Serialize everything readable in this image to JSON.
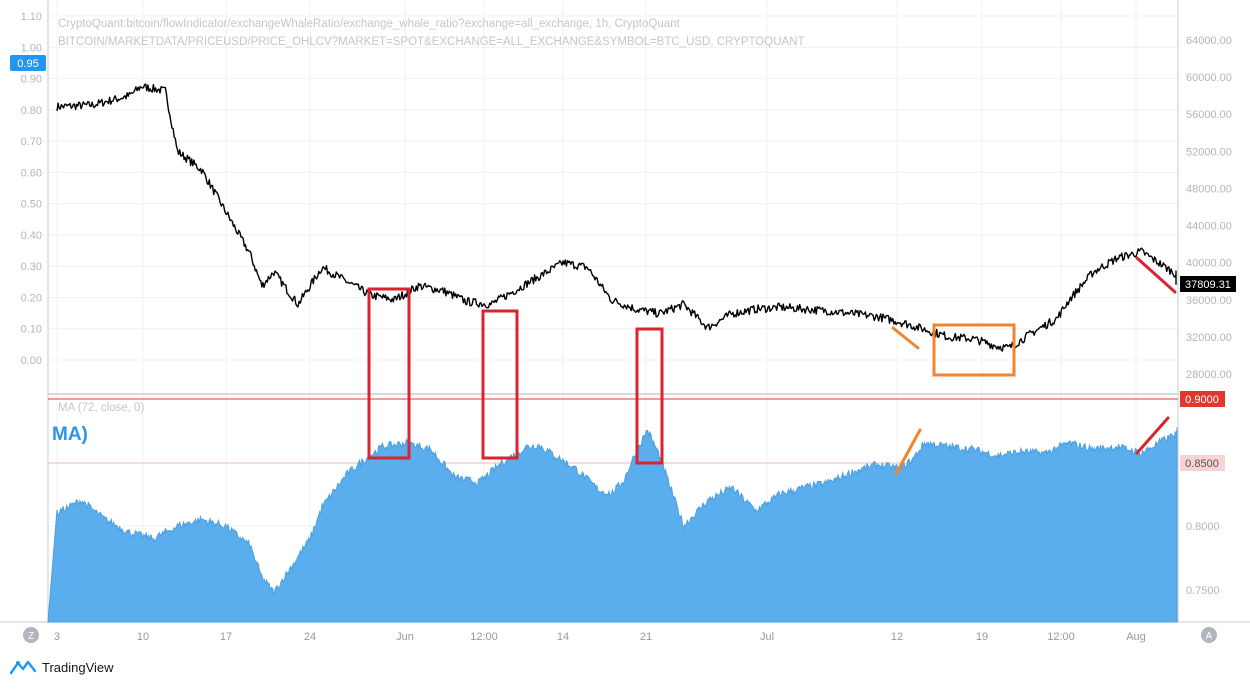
{
  "app": {
    "brand": "TradingView"
  },
  "header": {
    "line1": "CryptoQuant:bitcoin/flowIndicator/exchangeWhaleRatio/exchange_whale_ratio?exchange=all_exchange, 1h, CryptoQuant",
    "line2": "BITCOIN/MARKETDATA/PRICEUSD/PRICE_OHLCV?MARKET=SPOT&EXCHANGE=ALL_EXCHANGE&SYMBOL=BTC_USD, CRYPTOQUANT"
  },
  "upper_pane": {
    "left_axis_ticks": [
      "1.10",
      "1.00",
      "0.90",
      "0.80",
      "0.70",
      "0.60",
      "0.50",
      "0.40",
      "0.30",
      "0.20",
      "0.10",
      "0.00"
    ],
    "left_badge": "0.95",
    "right_axis_ticks": [
      "64000.00",
      "60000.00",
      "56000.00",
      "52000.00",
      "48000.00",
      "44000.00",
      "40000.00",
      "36000.00",
      "32000.00",
      "28000.00"
    ],
    "price_badge": "37809.31"
  },
  "lower_pane": {
    "indicator_label": "MA (72, close, 0)",
    "big_label": "MA)",
    "right_axis_ticks": [
      "0.8000",
      "0.7500"
    ],
    "badges": [
      "0.9000",
      "0.8500"
    ]
  },
  "x_axis": {
    "ticks": [
      "3",
      "10",
      "17",
      "24",
      "Jun",
      "12:00",
      "14",
      "21",
      "Jul",
      "12",
      "19",
      "12:00",
      "Aug"
    ],
    "left_button": "Z",
    "right_button": "A"
  },
  "colors": {
    "price_line": "#000000",
    "ma_fill": "#5aaeee",
    "ma_stroke": "#4a9fe0",
    "annotation_red": "#d9232f",
    "annotation_orange": "#f0852d",
    "badge_blue": "#2196f3",
    "badge_red": "#e0382f",
    "badge_pink": "#f7d3d5",
    "badge_black": "#000000"
  },
  "chart_data": [
    {
      "type": "line",
      "series": [
        {
          "name": "BTC_USD",
          "x": [
            "May 3",
            "May 6",
            "May 9",
            "May 10",
            "May 12",
            "May 13",
            "May 15",
            "May 17",
            "May 19",
            "May 20",
            "May 21",
            "May 23",
            "May 25",
            "May 27",
            "May 29",
            "May 31",
            "Jun 2",
            "Jun 4",
            "Jun 6",
            "Jun 8",
            "Jun 10",
            "Jun 12",
            "Jun 14",
            "Jun 16",
            "Jun 18",
            "Jun 20",
            "Jun 22",
            "Jun 24",
            "Jun 26",
            "Jun 28",
            "Jun 30",
            "Jul 2",
            "Jul 4",
            "Jul 6",
            "Jul 8",
            "Jul 10",
            "Jul 12",
            "Jul 14",
            "Jul 16",
            "Jul 18",
            "Jul 20",
            "Jul 21",
            "Jul 23",
            "Jul 25",
            "Jul 26",
            "Jul 28",
            "Jul 30",
            "Aug 1",
            "Aug 3",
            "Aug 5"
          ],
          "values": [
            56800,
            57000,
            58000,
            59000,
            58500,
            52000,
            50000,
            45500,
            41000,
            37500,
            39000,
            35500,
            39500,
            38000,
            36500,
            36000,
            37500,
            37000,
            35800,
            35500,
            37000,
            38500,
            40000,
            39500,
            36000,
            35000,
            34500,
            35500,
            33000,
            34500,
            35000,
            35200,
            35000,
            34800,
            34500,
            34200,
            33600,
            32800,
            32000,
            31800,
            31000,
            30800,
            32500,
            34000,
            36000,
            39000,
            40500,
            41200,
            39500,
            37800
          ]
        }
      ],
      "ylabel": "",
      "ylim": [
        27000,
        66000
      ]
    },
    {
      "type": "line",
      "series": [
        {
          "name": "exchange_whale_ratio",
          "x": [
            "May 3",
            "May 10",
            "May 17",
            "May 20",
            "May 24",
            "May 28",
            "Jun 1",
            "Jun 7",
            "Jun 12",
            "Jun 14",
            "Jun 18",
            "Jun 21",
            "Jun 24",
            "Jul 1",
            "Jul 8",
            "Jul 12",
            "Jul 19",
            "Jul 26",
            "Aug 1",
            "Aug 5"
          ],
          "values": [
            0.81,
            0.79,
            0.78,
            0.74,
            0.79,
            0.84,
            0.86,
            0.84,
            0.86,
            0.82,
            0.84,
            0.87,
            0.8,
            0.81,
            0.82,
            0.84,
            0.85,
            0.86,
            0.86,
            0.87
          ]
        }
      ],
      "ylim": [
        0.73,
        0.9
      ]
    },
    {
      "type": "area",
      "series": [
        {
          "name": "MA (72, close, 0)",
          "x": [
            "May 3",
            "May 5",
            "May 7",
            "May 9",
            "May 11",
            "May 13",
            "May 15",
            "May 17",
            "May 19",
            "May 20",
            "May 21",
            "May 22",
            "May 24",
            "May 25",
            "May 27",
            "May 28",
            "May 30",
            "Jun 1",
            "Jun 3",
            "Jun 5",
            "Jun 7",
            "Jun 9",
            "Jun 11",
            "Jun 12",
            "Jun 13",
            "Jun 15",
            "Jun 17",
            "Jun 18",
            "Jun 19",
            "Jun 20",
            "Jun 21",
            "Jun 22",
            "Jun 24",
            "Jun 26",
            "Jun 28",
            "Jun 30",
            "Jul 2",
            "Jul 4",
            "Jul 6",
            "Jul 8",
            "Jul 10",
            "Jul 12",
            "Jul 13",
            "Jul 14",
            "Jul 16",
            "Jul 18",
            "Jul 20",
            "Jul 22",
            "Jul 24",
            "Jul 26",
            "Jul 28",
            "Jul 30",
            "Aug 1",
            "Aug 3",
            "Aug 5"
          ],
          "values": [
            0.81,
            0.82,
            0.805,
            0.795,
            0.79,
            0.8,
            0.805,
            0.8,
            0.785,
            0.76,
            0.748,
            0.762,
            0.79,
            0.815,
            0.84,
            0.848,
            0.862,
            0.865,
            0.86,
            0.838,
            0.834,
            0.85,
            0.862,
            0.863,
            0.857,
            0.845,
            0.828,
            0.825,
            0.835,
            0.857,
            0.875,
            0.855,
            0.8,
            0.82,
            0.83,
            0.812,
            0.825,
            0.83,
            0.834,
            0.842,
            0.848,
            0.845,
            0.852,
            0.865,
            0.862,
            0.86,
            0.855,
            0.858,
            0.857,
            0.865,
            0.86,
            0.862,
            0.857,
            0.868,
            0.877
          ]
        }
      ],
      "ylim": [
        0.73,
        0.9
      ],
      "right_axis_ticks": [
        0.75,
        0.8,
        0.85,
        0.9
      ]
    }
  ]
}
